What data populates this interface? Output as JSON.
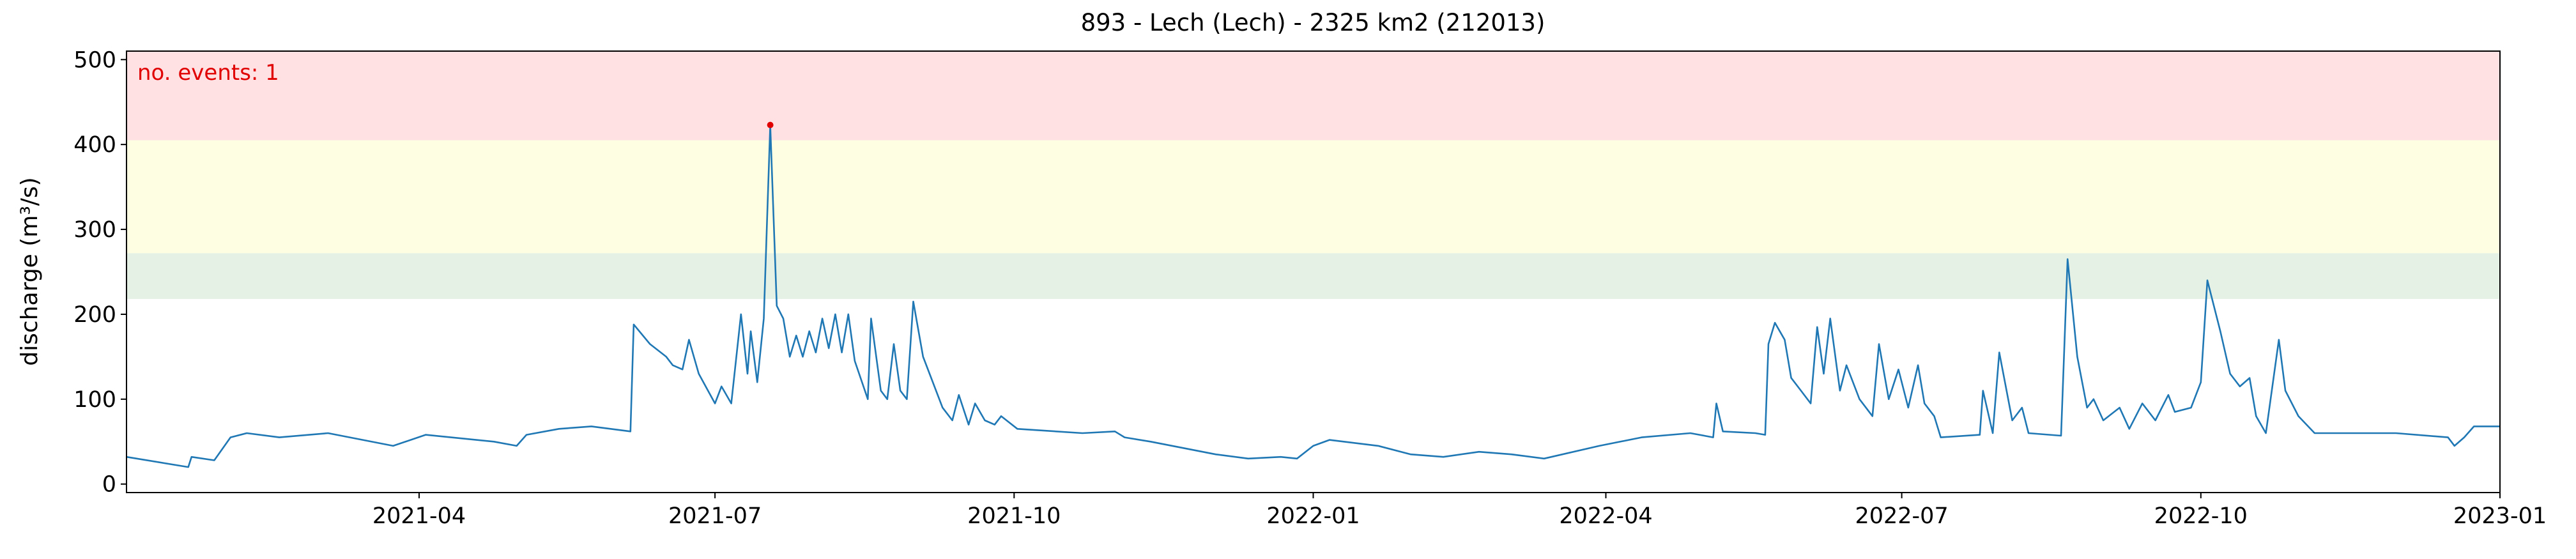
{
  "chart_data": {
    "type": "line",
    "title": "893 - Lech (Lech) - 2325 km2 (212013)",
    "y_label": "discharge (m³/s)",
    "annotation": "no. events: 1",
    "annotation_color": "#e00000",
    "color": "#1f77b4",
    "xlim": [
      0,
      730
    ],
    "xticks": [
      {
        "value": 90,
        "label": "2021-04"
      },
      {
        "value": 181,
        "label": "2021-07"
      },
      {
        "value": 273,
        "label": "2021-10"
      },
      {
        "value": 365,
        "label": "2022-01"
      },
      {
        "value": 455,
        "label": "2022-04"
      },
      {
        "value": 546,
        "label": "2022-07"
      },
      {
        "value": 638,
        "label": "2022-10"
      },
      {
        "value": 730,
        "label": "2023-01"
      }
    ],
    "ylim": [
      -10,
      510
    ],
    "yticks": [
      0,
      100,
      200,
      300,
      400,
      500
    ],
    "grid": false,
    "bands": [
      {
        "from": 218,
        "to": 272,
        "color": "#e5f1e5"
      },
      {
        "from": 272,
        "to": 405,
        "color": "#fefee3"
      },
      {
        "from": 405,
        "to": 510,
        "color": "#ffe1e4"
      }
    ],
    "x": [
      0,
      19,
      20,
      27,
      32,
      37,
      47,
      62,
      82,
      92,
      113,
      120,
      123,
      133,
      143,
      155,
      156,
      161,
      166,
      168,
      171,
      173,
      176,
      181,
      183,
      186,
      189,
      191,
      192,
      194,
      196,
      198,
      200,
      202,
      204,
      206,
      208,
      210,
      212,
      214,
      216,
      218,
      220,
      222,
      224,
      228,
      229,
      232,
      234,
      236,
      238,
      240,
      242,
      245,
      251,
      254,
      256,
      259,
      261,
      264,
      267,
      269,
      274,
      294,
      304,
      307,
      315,
      335,
      345,
      355,
      360,
      365,
      370,
      385,
      395,
      405,
      416,
      426,
      436,
      453,
      466,
      481,
      488,
      489,
      491,
      501,
      504,
      505,
      507,
      510,
      512,
      515,
      518,
      520,
      522,
      524,
      527,
      529,
      533,
      537,
      539,
      542,
      545,
      548,
      551,
      553,
      556,
      558,
      570,
      571,
      574,
      576,
      580,
      583,
      585,
      595,
      597,
      600,
      603,
      605,
      608,
      613,
      616,
      620,
      624,
      628,
      630,
      635,
      638,
      640,
      644,
      647,
      650,
      653,
      655,
      658,
      662,
      664,
      668,
      673,
      698,
      714,
      716,
      719,
      722,
      730
    ],
    "values": [
      32,
      20,
      32,
      28,
      55,
      60,
      55,
      60,
      45,
      58,
      50,
      45,
      58,
      65,
      68,
      62,
      188,
      165,
      150,
      140,
      135,
      170,
      130,
      95,
      115,
      95,
      200,
      130,
      180,
      120,
      195,
      423,
      210,
      195,
      150,
      175,
      150,
      180,
      155,
      195,
      160,
      200,
      155,
      200,
      145,
      100,
      195,
      110,
      100,
      165,
      110,
      100,
      215,
      150,
      90,
      75,
      105,
      70,
      95,
      75,
      70,
      80,
      65,
      60,
      62,
      55,
      50,
      35,
      30,
      32,
      30,
      45,
      52,
      45,
      35,
      32,
      38,
      35,
      30,
      45,
      55,
      60,
      55,
      95,
      62,
      60,
      58,
      165,
      190,
      170,
      125,
      110,
      95,
      185,
      130,
      195,
      110,
      140,
      100,
      80,
      165,
      100,
      135,
      90,
      140,
      95,
      80,
      55,
      58,
      110,
      60,
      155,
      75,
      90,
      60,
      57,
      265,
      150,
      90,
      100,
      75,
      90,
      65,
      95,
      75,
      105,
      85,
      90,
      120,
      240,
      180,
      130,
      115,
      125,
      80,
      60,
      170,
      110,
      80,
      60,
      60,
      55,
      45,
      55,
      68,
      68
    ],
    "events": {
      "color": "#e00000",
      "x": [
        198
      ],
      "values": [
        423
      ]
    }
  }
}
